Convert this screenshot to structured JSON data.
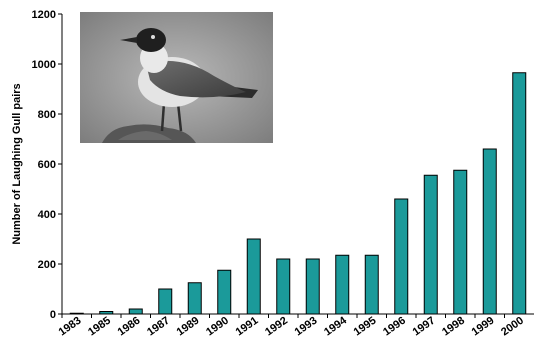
{
  "chart_data": {
    "type": "bar",
    "title": "",
    "xlabel": "",
    "ylabel": "Number of Laughing Gull pairs",
    "ylim": [
      0,
      1200
    ],
    "yticks": [
      0,
      200,
      400,
      600,
      800,
      1000,
      1200
    ],
    "grid": false,
    "categories": [
      "1983",
      "1985",
      "1986",
      "1987",
      "1989",
      "1990",
      "1991",
      "1992",
      "1993",
      "1994",
      "1995",
      "1996",
      "1997",
      "1998",
      "1999",
      "2000"
    ],
    "values": [
      3,
      10,
      20,
      100,
      125,
      175,
      300,
      220,
      220,
      235,
      235,
      460,
      555,
      575,
      660,
      965
    ],
    "bar_color": "#1b9a9a",
    "inset_image": "laughing-gull-photo"
  }
}
